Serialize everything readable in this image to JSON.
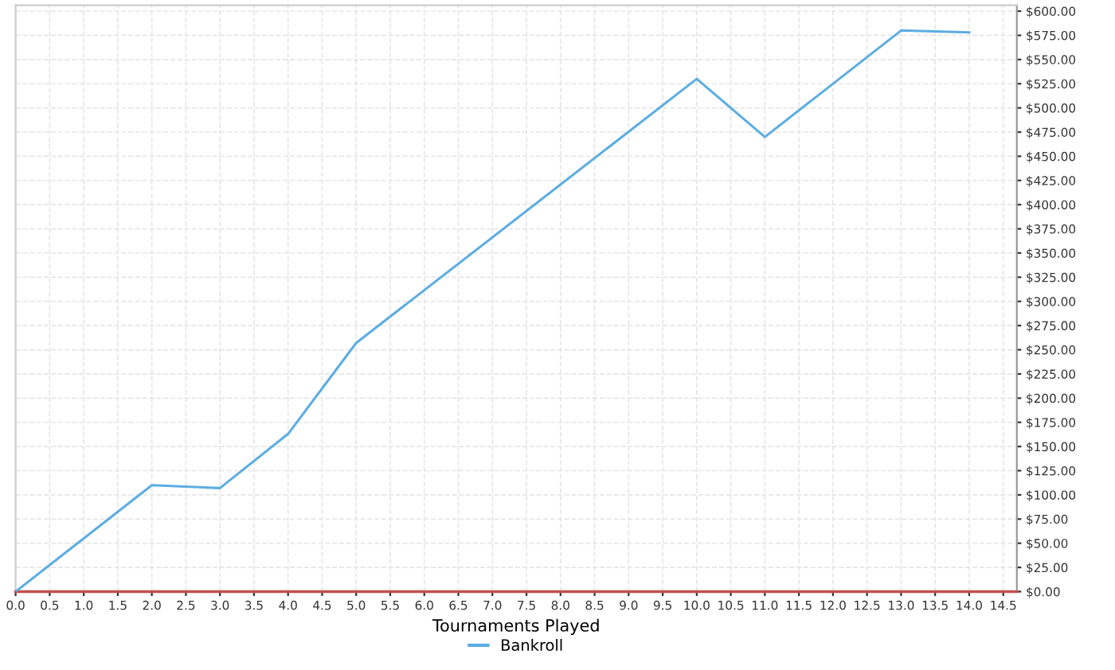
{
  "chart_data": {
    "type": "line",
    "xlabel": "Tournaments Played",
    "x": [
      0,
      2,
      3,
      4,
      5,
      10,
      11,
      13,
      14
    ],
    "series": [
      {
        "name": "Bankroll",
        "color": "#5dade2",
        "values": [
          0,
          110,
          107,
          163,
          257,
          530,
          470,
          580,
          578
        ]
      }
    ],
    "xlim": [
      0,
      14.7
    ],
    "xticks": [
      {
        "value": 0,
        "label": "0.0"
      },
      {
        "value": 0.5,
        "label": "0.5"
      },
      {
        "value": 1,
        "label": "1.0"
      },
      {
        "value": 1.5,
        "label": "1.5"
      },
      {
        "value": 2,
        "label": "2.0"
      },
      {
        "value": 2.5,
        "label": "2.5"
      },
      {
        "value": 3,
        "label": "3.0"
      },
      {
        "value": 3.5,
        "label": "3.5"
      },
      {
        "value": 4,
        "label": "4.0"
      },
      {
        "value": 4.5,
        "label": "4.5"
      },
      {
        "value": 5,
        "label": "5.0"
      },
      {
        "value": 5.5,
        "label": "5.5"
      },
      {
        "value": 6,
        "label": "6.0"
      },
      {
        "value": 6.5,
        "label": "6.5"
      },
      {
        "value": 7,
        "label": "7.0"
      },
      {
        "value": 7.5,
        "label": "7.5"
      },
      {
        "value": 8,
        "label": "8.0"
      },
      {
        "value": 8.5,
        "label": "8.5"
      },
      {
        "value": 9,
        "label": "9.0"
      },
      {
        "value": 9.5,
        "label": "9.5"
      },
      {
        "value": 10,
        "label": "10.0"
      },
      {
        "value": 10.5,
        "label": "10.5"
      },
      {
        "value": 11,
        "label": "11.0"
      },
      {
        "value": 11.5,
        "label": "11.5"
      },
      {
        "value": 12,
        "label": "12.0"
      },
      {
        "value": 12.5,
        "label": "12.5"
      },
      {
        "value": 13,
        "label": "13.0"
      },
      {
        "value": 13.5,
        "label": "13.5"
      },
      {
        "value": 14,
        "label": "14.0"
      },
      {
        "value": 14.5,
        "label": "14.5"
      }
    ],
    "ylim": [
      0,
      606
    ],
    "yticks": [
      {
        "value": 0,
        "label": "$0.00"
      },
      {
        "value": 25,
        "label": "$25.00"
      },
      {
        "value": 50,
        "label": "$50.00"
      },
      {
        "value": 75,
        "label": "$75.00"
      },
      {
        "value": 100,
        "label": "$100.00"
      },
      {
        "value": 125,
        "label": "$125.00"
      },
      {
        "value": 150,
        "label": "$150.00"
      },
      {
        "value": 175,
        "label": "$175.00"
      },
      {
        "value": 200,
        "label": "$200.00"
      },
      {
        "value": 225,
        "label": "$225.00"
      },
      {
        "value": 250,
        "label": "$250.00"
      },
      {
        "value": 275,
        "label": "$275.00"
      },
      {
        "value": 300,
        "label": "$300.00"
      },
      {
        "value": 325,
        "label": "$325.00"
      },
      {
        "value": 350,
        "label": "$350.00"
      },
      {
        "value": 375,
        "label": "$375.00"
      },
      {
        "value": 400,
        "label": "$400.00"
      },
      {
        "value": 425,
        "label": "$425.00"
      },
      {
        "value": 450,
        "label": "$450.00"
      },
      {
        "value": 475,
        "label": "$475.00"
      },
      {
        "value": 500,
        "label": "$500.00"
      },
      {
        "value": 525,
        "label": "$525.00"
      },
      {
        "value": 550,
        "label": "$550.00"
      },
      {
        "value": 575,
        "label": "$575.00"
      },
      {
        "value": 600,
        "label": "$600.00"
      }
    ],
    "grid": true,
    "legend": "bottom",
    "marker": "none",
    "line_style": "solid"
  }
}
